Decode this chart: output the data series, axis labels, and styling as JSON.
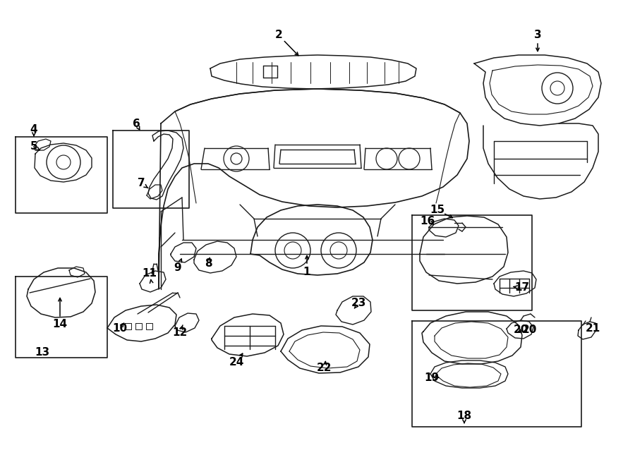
{
  "bg_color": "#ffffff",
  "line_color": "#1a1a1a",
  "lw": 1.0,
  "fig_w": 9.0,
  "fig_h": 6.62,
  "dpi": 100
}
